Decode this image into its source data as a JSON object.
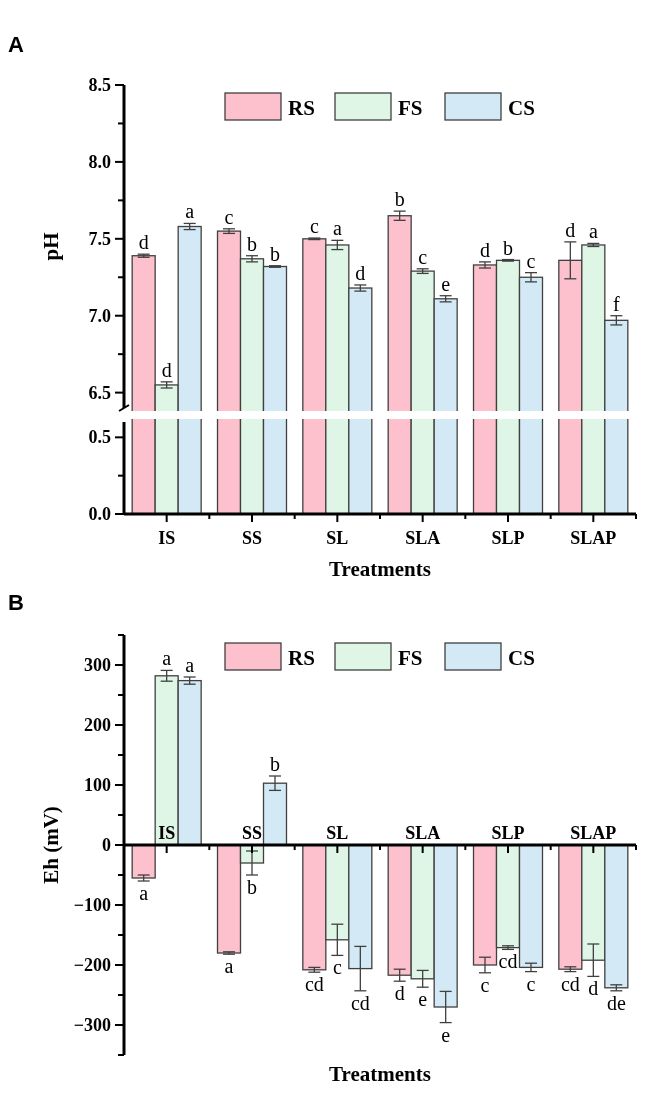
{
  "chart_data": [
    {
      "type": "bar",
      "title": "A",
      "ylabel": "pH",
      "categories": [
        null,
        null,
        null,
        null,
        null,
        null
      ],
      "series": [
        {
          "name": "RS",
          "color": "#fdc1cd",
          "values": [
            7.39,
            7.55,
            7.5,
            7.65,
            7.33,
            7.36
          ],
          "errors": [
            0.01,
            0.015,
            0.005,
            0.03,
            0.02,
            0.12
          ],
          "value_labels": [
            "d",
            "c",
            "c",
            "b",
            "d",
            "d"
          ]
        },
        {
          "name": "FS",
          "color": "#dff5e6",
          "values": [
            6.55,
            7.37,
            7.46,
            7.29,
            7.36,
            7.46
          ],
          "errors": [
            0.02,
            0.02,
            0.03,
            0.015,
            0.005,
            0.01
          ],
          "value_labels": [
            "d",
            "b",
            "a",
            "c",
            "b",
            "a"
          ]
        },
        {
          "name": "CS",
          "color": "#d3e9f5",
          "values": [
            7.58,
            7.32,
            7.18,
            7.11,
            7.25,
            6.97
          ],
          "errors": [
            0.02,
            0.005,
            0.02,
            0.02,
            0.03,
            0.03
          ],
          "value_labels": [
            "a",
            "b",
            "d",
            "e",
            "c",
            "f"
          ]
        }
      ],
      "ylim": [
        6.4,
        8.5
      ],
      "yticks": [
        6.5,
        {
          "value": 6.75,
          "label": null
        },
        {
          "value": 7,
          "label": "7.0"
        },
        {
          "value": 7.25,
          "label": null
        },
        7.5,
        {
          "value": 7.75,
          "label": null
        },
        {
          "value": 8,
          "label": "8.0"
        },
        {
          "value": 8.25,
          "label": null
        },
        8.5
      ],
      "tick_labels": "y",
      "legend": "top",
      "grid": false
    },
    {
      "type": "bar",
      "xlabel": "Treatments",
      "categories": [
        "IS",
        "SS",
        "SL",
        "SLA",
        "SLP",
        "SLAP"
      ],
      "ylim": [
        0,
        0.6
      ],
      "yticks": [
        {
          "value": 0,
          "label": "0.0"
        },
        {
          "value": 0.25,
          "label": null
        },
        0.5
      ],
      "grid": false
    },
    {
      "type": "bar",
      "title": "B",
      "xlabel": "Treatments",
      "ylabel": "Eh (mV)",
      "categories": [
        "IS",
        "SS",
        "SL",
        "SLA",
        "SLP",
        "SLAP"
      ],
      "series": [
        {
          "name": "RS",
          "color": "#fdc1cd",
          "values": [
            -55,
            -180,
            -208,
            -217,
            -200,
            -207
          ],
          "errors": [
            5,
            2,
            4,
            10,
            13,
            4
          ],
          "value_labels": [
            "a",
            "a",
            "cd",
            "d",
            "c",
            "cd"
          ]
        },
        {
          "name": "FS",
          "color": "#dff5e6",
          "values": [
            282,
            -30,
            -158,
            -223,
            -171,
            -192
          ],
          "errors": [
            9,
            20,
            26,
            14,
            3,
            27
          ],
          "value_labels": [
            "a",
            "b",
            "c",
            "e",
            "cd",
            "d"
          ]
        },
        {
          "name": "CS",
          "color": "#d3e9f5",
          "values": [
            274,
            103,
            -206,
            -270,
            -204,
            -238
          ],
          "errors": [
            6,
            12,
            37,
            26,
            7,
            5
          ],
          "value_labels": [
            "a",
            "b",
            "cd",
            "e",
            "c",
            "de"
          ]
        }
      ],
      "ylim": [
        -350,
        350
      ],
      "yticks": [
        {
          "value": -350,
          "label": null
        },
        {
          "value": -300,
          "label": "−300"
        },
        {
          "value": -250,
          "label": null
        },
        {
          "value": -200,
          "label": "−200"
        },
        {
          "value": -150,
          "label": null
        },
        {
          "value": -100,
          "label": "−100"
        },
        {
          "value": -50,
          "label": null
        },
        0,
        {
          "value": 50,
          "label": null
        },
        100,
        {
          "value": 150,
          "label": null
        },
        200,
        {
          "value": 250,
          "label": null
        },
        300,
        {
          "value": 350,
          "label": null
        }
      ],
      "legend": "top",
      "grid": false
    }
  ]
}
